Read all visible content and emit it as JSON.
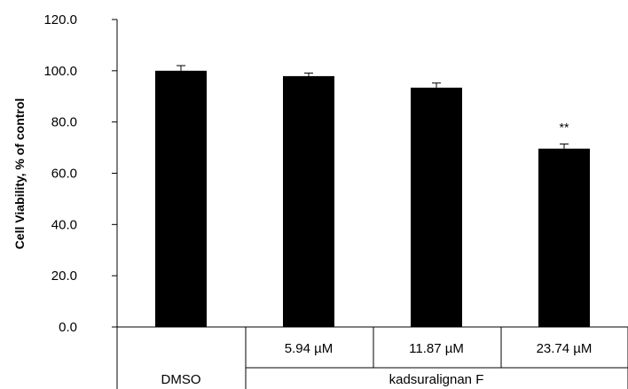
{
  "chart_data": {
    "type": "bar",
    "title": "",
    "ylabel": "Cell Viability, % of control",
    "ylim": [
      0,
      120
    ],
    "yticks": [
      "0.0",
      "20.0",
      "40.0",
      "60.0",
      "80.0",
      "100.0",
      "120.0"
    ],
    "grid": false,
    "bar_color": "#000000",
    "categories": [
      "DMSO",
      "5.94 µM",
      "11.87 µM",
      "23.74 µM"
    ],
    "values": [
      100.0,
      97.9,
      93.4,
      69.6
    ],
    "errors": [
      2.0,
      1.2,
      1.8,
      1.8
    ],
    "annotations": [
      "",
      "",
      "",
      "**"
    ],
    "x_group_labels": {
      "control": "DMSO",
      "treatment": "kadsuralignan F"
    }
  }
}
